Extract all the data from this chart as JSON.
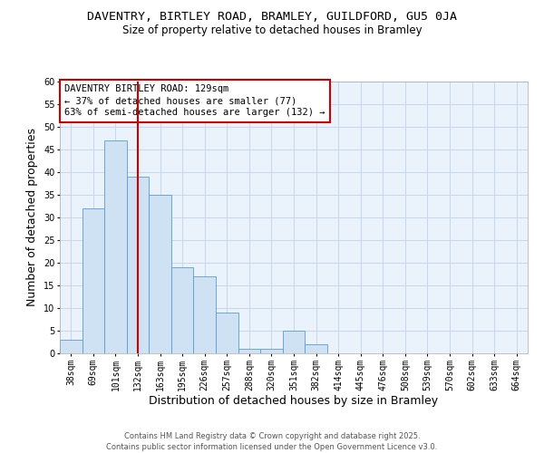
{
  "title1": "DAVENTRY, BIRTLEY ROAD, BRAMLEY, GUILDFORD, GU5 0JA",
  "title2": "Size of property relative to detached houses in Bramley",
  "xlabel": "Distribution of detached houses by size in Bramley",
  "ylabel": "Number of detached properties",
  "bins": [
    "38sqm",
    "69sqm",
    "101sqm",
    "132sqm",
    "163sqm",
    "195sqm",
    "226sqm",
    "257sqm",
    "288sqm",
    "320sqm",
    "351sqm",
    "382sqm",
    "414sqm",
    "445sqm",
    "476sqm",
    "508sqm",
    "539sqm",
    "570sqm",
    "602sqm",
    "633sqm",
    "664sqm"
  ],
  "values": [
    3,
    32,
    47,
    39,
    35,
    19,
    17,
    9,
    1,
    1,
    5,
    2,
    0,
    0,
    0,
    0,
    0,
    0,
    0,
    0,
    0
  ],
  "bar_color": "#cfe2f3",
  "bar_edge_color": "#5b9bd5",
  "red_line_index": 3,
  "annotation_title": "DAVENTRY BIRTLEY ROAD: 129sqm",
  "annotation_line1": "← 37% of detached houses are smaller (77)",
  "annotation_line2": "63% of semi-detached houses are larger (132) →",
  "annotation_box_color": "#ffffff",
  "annotation_box_edge": "#cc0000",
  "ylim": [
    0,
    60
  ],
  "yticks": [
    0,
    5,
    10,
    15,
    20,
    25,
    30,
    35,
    40,
    45,
    50,
    55,
    60
  ],
  "grid_color": "#c8d8e8",
  "background_color": "#eaf3fb",
  "footer_line1": "Contains HM Land Registry data © Crown copyright and database right 2025.",
  "footer_line2": "Contains public sector information licensed under the Open Government Licence v3.0.",
  "title1_fontsize": 9.5,
  "title2_fontsize": 8.5,
  "axis_fontsize": 8,
  "tick_fontsize": 7,
  "annotation_fontsize": 7.5
}
